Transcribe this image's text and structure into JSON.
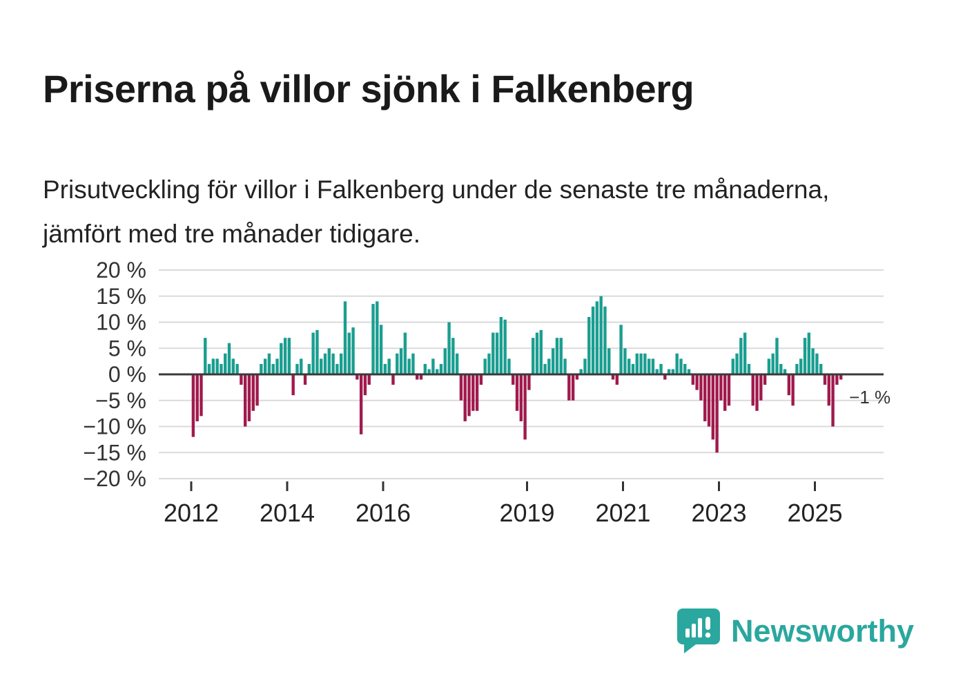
{
  "title": "Priserna på villor sjönk i Falkenberg",
  "subtitle": "Prisutveckling för villor i Falkenberg under de senaste tre månaderna, jämfört med tre månader tidigare.",
  "chart_data": {
    "type": "bar",
    "title": "Priserna på villor sjönk i Falkenberg",
    "unit": "%",
    "x_start": "2012-01",
    "x_frequency": "monthly",
    "ylim": [
      -20,
      20
    ],
    "grid": true,
    "y_ticks": [
      20,
      15,
      10,
      5,
      0,
      -5,
      -10,
      -15,
      -20
    ],
    "y_tick_labels": [
      "20 %",
      "15 %",
      "10 %",
      "5 %",
      "0 %",
      "−5 %",
      "−10 %",
      "−15 %",
      "−20 %"
    ],
    "x_tick_years": [
      2012,
      2014,
      2016,
      2019,
      2021,
      2023,
      2025
    ],
    "x_tick_labels": [
      "2012",
      "2014",
      "2016",
      "2019",
      "2021",
      "2023",
      "2025"
    ],
    "annotation": "−1 %",
    "colors": {
      "positive": "#1a9e90",
      "negative": "#a01a4d"
    },
    "values": [
      -12,
      -9,
      -8,
      7,
      2,
      3,
      3,
      2,
      4,
      6,
      3,
      2,
      -2,
      -10,
      -9,
      -7,
      -6,
      2,
      3,
      4,
      2,
      3,
      6,
      7,
      7,
      -4,
      2,
      3,
      -2,
      2,
      8,
      8.5,
      3,
      4,
      5,
      4,
      2,
      4,
      14,
      8,
      9,
      -1,
      -11.5,
      -4,
      -2,
      13.5,
      14,
      9.5,
      2,
      3,
      -2,
      4,
      5,
      8,
      3,
      4,
      -1,
      -1,
      2,
      1,
      3,
      1,
      2,
      5,
      10,
      7,
      4,
      -5,
      -9,
      -8,
      -7,
      -7,
      -2,
      3,
      4,
      8,
      8,
      11,
      10.5,
      3,
      -2,
      -7,
      -9,
      -12.5,
      -3,
      7,
      8,
      8.5,
      2,
      3,
      5,
      7,
      7,
      3,
      -5,
      -5,
      -1,
      1,
      3,
      11,
      13,
      14,
      15,
      13,
      5,
      -1,
      -2,
      9.5,
      5,
      3,
      2,
      4,
      4,
      4,
      3,
      3,
      1,
      2,
      -1,
      1,
      1,
      4,
      3,
      2,
      1,
      -2,
      -3,
      -5,
      -9,
      -10,
      -12.5,
      -15,
      -5,
      -7,
      -6,
      3,
      4,
      7,
      8,
      2,
      -6,
      -7,
      -5,
      -2,
      3,
      4,
      7,
      2,
      1,
      -4,
      -6,
      2,
      3,
      7,
      8,
      5,
      4,
      2,
      -2,
      -6,
      -10,
      -2,
      -1
    ]
  },
  "branding": {
    "logo_text": "Newsworthy",
    "brand_color": "#2aa79e"
  }
}
